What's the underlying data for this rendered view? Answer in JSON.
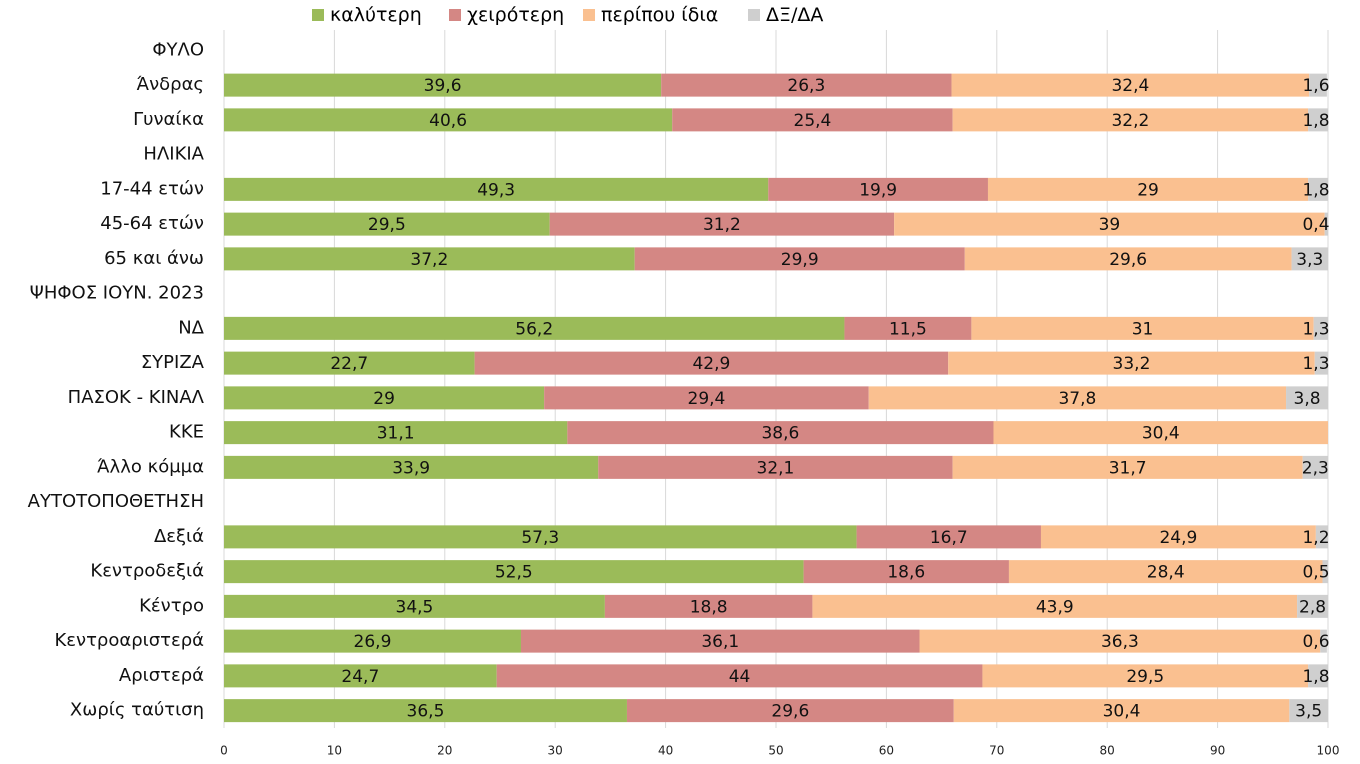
{
  "legend": [
    {
      "label": "καλύτερη",
      "color": "#9bbb59"
    },
    {
      "label": "χειρότερη",
      "color": "#d48784"
    },
    {
      "label": "περίπου ίδια",
      "color": "#fac090"
    },
    {
      "label": "ΔΞ/ΔΑ",
      "color": "#cfcfcf"
    }
  ],
  "chart_data": {
    "type": "bar",
    "orientation": "horizontal",
    "stacked": true,
    "xlim": [
      0,
      100
    ],
    "xticks": [
      0,
      10,
      20,
      30,
      40,
      50,
      60,
      70,
      80,
      90,
      100
    ],
    "grid": true,
    "legend_position": "top",
    "series_names": [
      "καλύτερη",
      "χειρότερη",
      "περίπου ίδια",
      "ΔΞ/ΔΑ"
    ],
    "series_colors": [
      "#9bbb59",
      "#d48784",
      "#fac090",
      "#cfcfcf"
    ],
    "rows": [
      {
        "label": "ΦΥΛΟ",
        "header": true
      },
      {
        "label": "Άνδρας",
        "values": [
          39.6,
          26.3,
          32.4,
          1.6
        ],
        "labels": [
          "39,6",
          "26,3",
          "32,4",
          "1,6"
        ]
      },
      {
        "label": "Γυναίκα",
        "values": [
          40.6,
          25.4,
          32.2,
          1.8
        ],
        "labels": [
          "40,6",
          "25,4",
          "32,2",
          "1,8"
        ]
      },
      {
        "label": "ΗΛΙΚΙΑ",
        "header": true
      },
      {
        "label": "17-44 ετών",
        "values": [
          49.3,
          19.9,
          29,
          1.8
        ],
        "labels": [
          "49,3",
          "19,9",
          "29",
          "1,8"
        ]
      },
      {
        "label": "45-64 ετών",
        "values": [
          29.5,
          31.2,
          39,
          0.4
        ],
        "labels": [
          "29,5",
          "31,2",
          "39",
          "0,4"
        ]
      },
      {
        "label": "65 και άνω",
        "values": [
          37.2,
          29.9,
          29.6,
          3.3
        ],
        "labels": [
          "37,2",
          "29,9",
          "29,6",
          "3,3"
        ]
      },
      {
        "label": "ΨΗΦΟΣ ΙΟΥΝ. 2023",
        "header": true
      },
      {
        "label": "ΝΔ",
        "values": [
          56.2,
          11.5,
          31,
          1.3
        ],
        "labels": [
          "56,2",
          "11,5",
          "31",
          "1,3"
        ]
      },
      {
        "label": "ΣΥΡΙΖΑ",
        "values": [
          22.7,
          42.9,
          33.2,
          1.3
        ],
        "labels": [
          "22,7",
          "42,9",
          "33,2",
          "1,3"
        ]
      },
      {
        "label": "ΠΑΣΟΚ - ΚΙΝΑΛ",
        "values": [
          29,
          29.4,
          37.8,
          3.8
        ],
        "labels": [
          "29",
          "29,4",
          "37,8",
          "3,8"
        ]
      },
      {
        "label": "ΚΚΕ",
        "values": [
          31.1,
          38.6,
          30.4,
          0
        ],
        "labels": [
          "31,1",
          "38,6",
          "30,4",
          ""
        ]
      },
      {
        "label": "Άλλο κόμμα",
        "values": [
          33.9,
          32.1,
          31.7,
          2.3
        ],
        "labels": [
          "33,9",
          "32,1",
          "31,7",
          "2,3"
        ]
      },
      {
        "label": "ΑΥΤΟΤΟΠΟΘΕΤΗΣΗ",
        "header": true
      },
      {
        "label": "Δεξιά",
        "values": [
          57.3,
          16.7,
          24.9,
          1.2
        ],
        "labels": [
          "57,3",
          "16,7",
          "24,9",
          "1,2"
        ]
      },
      {
        "label": "Κεντροδεξιά",
        "values": [
          52.5,
          18.6,
          28.4,
          0.5
        ],
        "labels": [
          "52,5",
          "18,6",
          "28,4",
          "0,5"
        ]
      },
      {
        "label": "Κέντρο",
        "values": [
          34.5,
          18.8,
          43.9,
          2.8
        ],
        "labels": [
          "34,5",
          "18,8",
          "43,9",
          "2,8"
        ]
      },
      {
        "label": "Κεντροαριστερά",
        "values": [
          26.9,
          36.1,
          36.3,
          0.6
        ],
        "labels": [
          "26,9",
          "36,1",
          "36,3",
          "0,6"
        ]
      },
      {
        "label": "Αριστερά",
        "values": [
          24.7,
          44,
          29.5,
          1.8
        ],
        "labels": [
          "24,7",
          "44",
          "29,5",
          "1,8"
        ]
      },
      {
        "label": "Χωρίς ταύτιση",
        "values": [
          36.5,
          29.6,
          30.4,
          3.5
        ],
        "labels": [
          "36,5",
          "29,6",
          "30,4",
          "3,5"
        ]
      }
    ]
  }
}
